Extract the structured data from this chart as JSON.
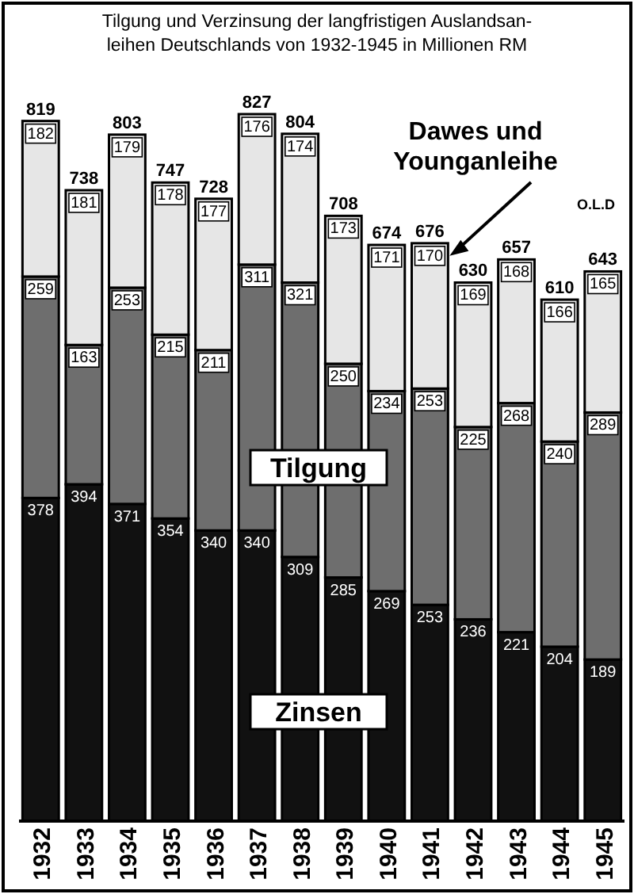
{
  "chart_data": {
    "type": "bar",
    "stacked": true,
    "title": "Tilgung und Verzinsung der langfristigen Auslandsan-\nleihen Deutschlands  von 1932-1945 in Millionen RM",
    "categories": [
      "1932",
      "1933",
      "1934",
      "1935",
      "1936",
      "1937",
      "1938",
      "1939",
      "1940",
      "1941",
      "1942",
      "1943",
      "1944",
      "1945"
    ],
    "series": [
      {
        "name": "Zinsen",
        "color": "#111111",
        "values": [
          378,
          394,
          371,
          354,
          340,
          340,
          309,
          285,
          269,
          253,
          236,
          221,
          204,
          189
        ]
      },
      {
        "name": "Tilgung",
        "color": "#6e6e6e",
        "values": [
          259,
          163,
          253,
          215,
          211,
          311,
          321,
          250,
          234,
          253,
          225,
          268,
          240,
          289
        ]
      },
      {
        "name": "Dawes und Younganleihe",
        "color": "#e6e6e6",
        "values": [
          182,
          181,
          179,
          178,
          177,
          176,
          174,
          173,
          171,
          170,
          169,
          168,
          166,
          165
        ]
      }
    ],
    "totals": [
      "819",
      "738",
      "803",
      "747",
      "728",
      "827",
      "804",
      "708",
      "674",
      "676",
      "630",
      "657",
      "610",
      "643"
    ],
    "data_labels": true,
    "annotations": [
      "O.L.D"
    ]
  }
}
